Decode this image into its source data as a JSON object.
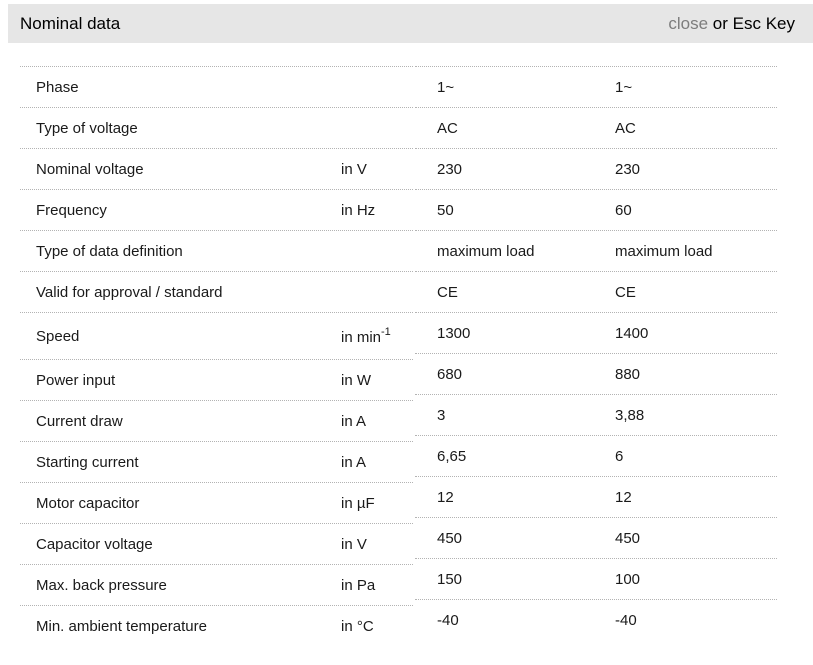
{
  "header": {
    "title": "Nominal data",
    "close_label": "close",
    "close_suffix": " or Esc Key"
  },
  "table": {
    "rows": [
      {
        "label": "Phase",
        "unit": "",
        "unit_sup": "",
        "values": [
          "1~",
          "1~"
        ]
      },
      {
        "label": "Type of voltage",
        "unit": "",
        "unit_sup": "",
        "values": [
          "AC",
          "AC"
        ]
      },
      {
        "label": "Nominal voltage",
        "unit": "in V",
        "unit_sup": "",
        "values": [
          "230",
          "230"
        ]
      },
      {
        "label": "Frequency",
        "unit": "in Hz",
        "unit_sup": "",
        "values": [
          "50",
          "60"
        ]
      },
      {
        "label": "Type of data definition",
        "unit": "",
        "unit_sup": "",
        "values": [
          "maximum load",
          "maximum load"
        ]
      },
      {
        "label": "Valid for approval / standard",
        "unit": "",
        "unit_sup": "",
        "values": [
          "CE",
          "CE"
        ]
      },
      {
        "label": "Speed",
        "unit": "in min",
        "unit_sup": "-1",
        "values": [
          "1300",
          "1400"
        ]
      },
      {
        "label": "Power input",
        "unit": "in W",
        "unit_sup": "",
        "values": [
          "680",
          "880"
        ]
      },
      {
        "label": "Current draw",
        "unit": "in A",
        "unit_sup": "",
        "values": [
          "3",
          "3,88"
        ]
      },
      {
        "label": "Starting current",
        "unit": "in A",
        "unit_sup": "",
        "values": [
          "6,65",
          "6"
        ]
      },
      {
        "label": "Motor capacitor",
        "unit": "in µF",
        "unit_sup": "",
        "values": [
          "12",
          "12"
        ]
      },
      {
        "label": "Capacitor voltage",
        "unit": "in V",
        "unit_sup": "",
        "values": [
          "450",
          "450"
        ]
      },
      {
        "label": "Max. back pressure",
        "unit": "in Pa",
        "unit_sup": "",
        "values": [
          "150",
          "100"
        ]
      },
      {
        "label": "Min. ambient temperature",
        "unit": "in °C",
        "unit_sup": "",
        "values": [
          "-40",
          "-40"
        ]
      }
    ]
  },
  "colors": {
    "header_bg": "#e6e6e6",
    "header_text": "#000000",
    "close_link": "#7d7d7d",
    "body_text": "#1a1a1a",
    "divider": "#b3b3b3"
  }
}
